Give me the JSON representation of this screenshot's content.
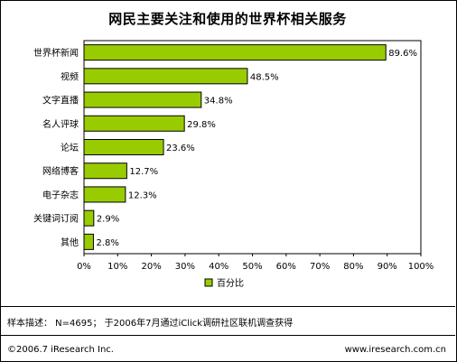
{
  "title": "网民主要关注和使用的世界杯相关服务",
  "note": "样本描述： N=4695； 于2006年7月通过iClick调研社区联机调查获得",
  "copyright": "©2006.7 iResearch Inc.",
  "website": "www.iresearch.com.cn",
  "chart_data": {
    "type": "bar",
    "orientation": "horizontal",
    "categories": [
      "世界杯新闻",
      "视频",
      "文字直播",
      "名人评球",
      "论坛",
      "网络博客",
      "电子杂志",
      "关键词订阅",
      "其他"
    ],
    "series": [
      {
        "name": "百分比",
        "values": [
          89.6,
          48.5,
          34.8,
          29.8,
          23.6,
          12.7,
          12.3,
          2.9,
          2.8
        ],
        "color": "#99cc00"
      }
    ],
    "data_labels": [
      "89.6%",
      "48.5%",
      "34.8%",
      "29.8%",
      "23.6%",
      "12.7%",
      "12.3%",
      "2.9%",
      "2.8%"
    ],
    "x_ticks": [
      "0%",
      "10%",
      "20%",
      "30%",
      "40%",
      "50%",
      "60%",
      "70%",
      "80%",
      "90%",
      "100%"
    ],
    "xlim": [
      0,
      100
    ],
    "grid": false,
    "legend_position": "bottom"
  }
}
